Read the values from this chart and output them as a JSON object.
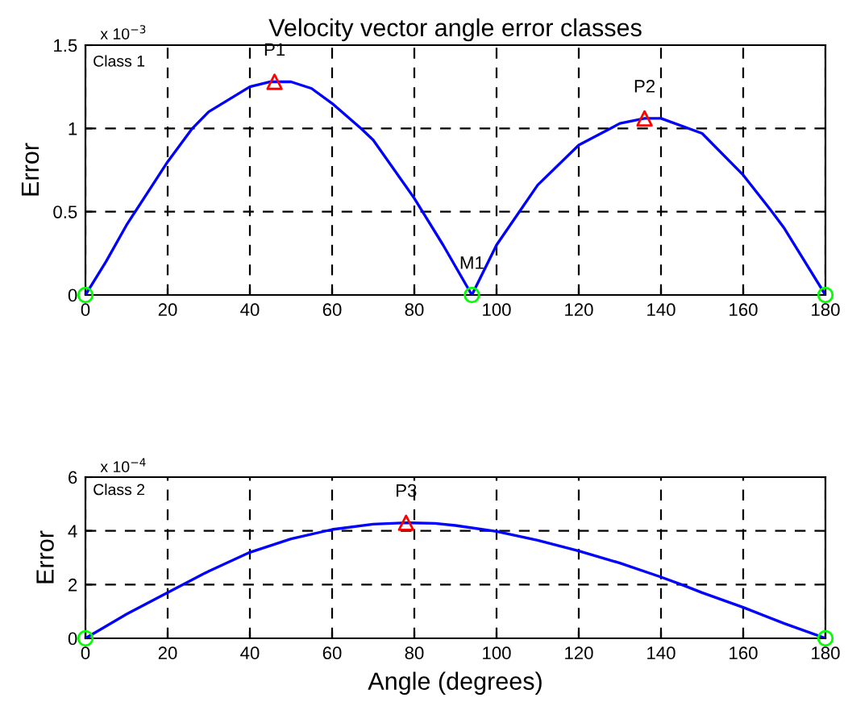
{
  "chart_data": [
    {
      "type": "line",
      "title": "Velocity vector angle error classes",
      "ylabel": "Error",
      "xlim": [
        0,
        180
      ],
      "xticks": [
        0,
        20,
        40,
        60,
        80,
        100,
        120,
        140,
        160,
        180
      ],
      "ylim": [
        0,
        1.5
      ],
      "yticks": [
        0,
        0.5,
        1,
        1.5
      ],
      "grid": true,
      "legend": false,
      "annotations": [
        "Class 1",
        "x 10$^{−3}$",
        {
          "text": "P1",
          "x": 46,
          "y": 1.28
        },
        {
          "text": "P2",
          "x": 136,
          "y": 1.06
        },
        {
          "text": "M1",
          "x": 94,
          "y": 0
        }
      ],
      "series": [
        {
          "color": "#0000ff",
          "marker": "none",
          "x": [
            0,
            5,
            10,
            20,
            26,
            30,
            40,
            45,
            50,
            55,
            60,
            67,
            70,
            80,
            87,
            94,
            100,
            110,
            120,
            130,
            136,
            140,
            150,
            160,
            167,
            170,
            175,
            180
          ],
          "values": [
            0,
            0.2,
            0.42,
            0.8,
            1.0,
            1.1,
            1.25,
            1.28,
            1.28,
            1.24,
            1.15,
            1.0,
            0.93,
            0.58,
            0.3,
            0,
            0.3,
            0.66,
            0.9,
            1.03,
            1.06,
            1.06,
            0.97,
            0.72,
            0.5,
            0.4,
            0.2,
            0
          ]
        },
        {
          "type": "scatter",
          "color": "#ff0000",
          "marker": "triangle",
          "x": [
            46,
            136
          ],
          "values": [
            1.28,
            1.06
          ]
        },
        {
          "type": "scatter",
          "color": "#00ff00",
          "marker": "circle",
          "x": [
            0,
            94,
            180
          ],
          "values": [
            0,
            0,
            0
          ]
        }
      ]
    },
    {
      "type": "line",
      "xlabel": "Angle (degrees)",
      "ylabel": "Error",
      "xlim": [
        0,
        180
      ],
      "xticks": [
        0,
        20,
        40,
        60,
        80,
        100,
        120,
        140,
        160,
        180
      ],
      "ylim": [
        0,
        6
      ],
      "yticks": [
        0,
        2,
        4,
        6
      ],
      "grid": true,
      "legend": false,
      "annotations": [
        "Class 2",
        "x 10$^{−4}$",
        {
          "text": "P3",
          "x": 78,
          "y": 4.3
        }
      ],
      "series": [
        {
          "color": "#0000ff",
          "marker": "none",
          "x": [
            0,
            10,
            20,
            30,
            40,
            50,
            60,
            70,
            78,
            85,
            90,
            100,
            110,
            120,
            130,
            140,
            145,
            150,
            160,
            170,
            180
          ],
          "values": [
            0,
            0.9,
            1.7,
            2.5,
            3.2,
            3.7,
            4.05,
            4.25,
            4.3,
            4.28,
            4.2,
            3.98,
            3.65,
            3.25,
            2.8,
            2.28,
            2.0,
            1.7,
            1.15,
            0.55,
            0
          ]
        },
        {
          "type": "scatter",
          "color": "#ff0000",
          "marker": "triangle",
          "x": [
            78
          ],
          "values": [
            4.3
          ]
        },
        {
          "type": "scatter",
          "color": "#00ff00",
          "marker": "circle",
          "x": [
            0,
            180
          ],
          "values": [
            0,
            0
          ]
        }
      ]
    }
  ]
}
